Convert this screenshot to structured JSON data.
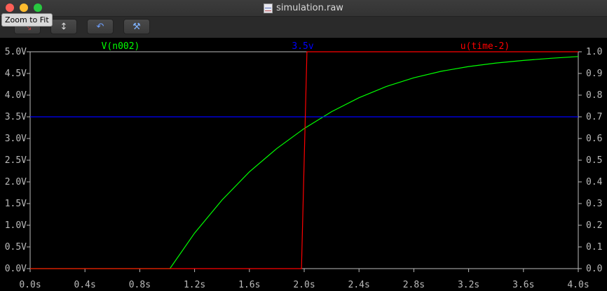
{
  "window": {
    "title": "simulation.raw",
    "tooltip": "Zoom to Fit"
  },
  "toolbar": {
    "buttons": [
      {
        "name": "zoom-to-fit-icon",
        "glyph": "⤡"
      },
      {
        "name": "autorange-icon",
        "glyph": "↕"
      },
      {
        "name": "undo-zoom-icon",
        "glyph": "↶"
      },
      {
        "name": "hammer-icon",
        "glyph": "⚒"
      }
    ]
  },
  "colors": {
    "trace_v": "#00ff00",
    "cursor": "#0000ff",
    "trace_u": "#ff0000",
    "grid": "#ffffff"
  },
  "chart_data": {
    "type": "line",
    "series": [
      {
        "name": "V(n002)",
        "axis": "left",
        "color": "#00ff00",
        "x": [
          0.0,
          0.5,
          1.0,
          1.02,
          1.2,
          1.4,
          1.6,
          1.8,
          2.0,
          2.2,
          2.4,
          2.6,
          2.8,
          3.0,
          3.2,
          3.4,
          3.6,
          3.8,
          4.0
        ],
        "y": [
          0.0,
          0.0,
          0.0,
          0.0,
          0.82,
          1.58,
          2.23,
          2.77,
          3.23,
          3.62,
          3.94,
          4.2,
          4.4,
          4.55,
          4.66,
          4.74,
          4.8,
          4.85,
          4.89
        ]
      },
      {
        "name": "3.5v",
        "axis": "left",
        "color": "#0000ff",
        "x": [
          0.0,
          4.0
        ],
        "y": [
          3.5,
          3.5
        ]
      },
      {
        "name": "u(time-2)",
        "axis": "right",
        "color": "#ff0000",
        "x": [
          0.0,
          1.98,
          2.02,
          4.0
        ],
        "y": [
          0.0,
          0.0,
          1.0,
          1.0
        ]
      }
    ],
    "x_ticks": [
      "0.0s",
      "0.4s",
      "0.8s",
      "1.2s",
      "1.6s",
      "2.0s",
      "2.4s",
      "2.8s",
      "3.2s",
      "3.6s",
      "4.0s"
    ],
    "y_left_ticks": [
      "0.0V",
      "0.5V",
      "1.0V",
      "1.5V",
      "2.0V",
      "2.5V",
      "3.0V",
      "3.5V",
      "4.0V",
      "4.5V",
      "5.0V"
    ],
    "y_right_ticks": [
      "0.0",
      "0.1",
      "0.2",
      "0.3",
      "0.4",
      "0.5",
      "0.6",
      "0.7",
      "0.8",
      "0.9",
      "1.0"
    ],
    "xlim": [
      0.0,
      4.0
    ],
    "ylim_left": [
      0.0,
      5.0
    ],
    "ylim_right": [
      0.0,
      1.0
    ],
    "grid": false,
    "legend": "top"
  }
}
